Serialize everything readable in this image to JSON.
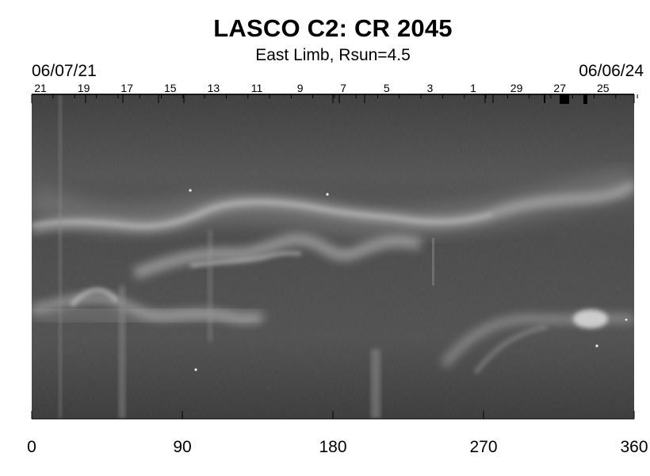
{
  "chart_data": {
    "type": "heatmap",
    "title": "LASCO C2: CR 2045",
    "subtitle": "East Limb, Rsun=4.5",
    "start_date": "06/07/21",
    "end_date": "06/06/24",
    "x_ticks": [
      0,
      90,
      180,
      270,
      360
    ],
    "xlim": [
      0,
      360
    ],
    "day_labels": [
      "21",
      "19",
      "17",
      "15",
      "13",
      "11",
      "9",
      "7",
      "5",
      "3",
      "1",
      "29",
      "27",
      "25"
    ],
    "colormap": "grayscale",
    "background_color": "#4f4f4f",
    "bright_band_color": "#c8c8c8"
  }
}
